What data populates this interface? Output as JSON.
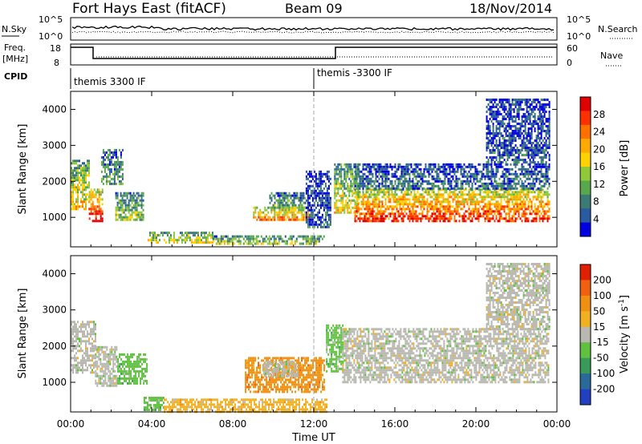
{
  "header": {
    "title": "Fort Hays East (fitACF)",
    "beam": "Beam 09",
    "date": "18/Nov/2014"
  },
  "top_panels": {
    "nsky_label": "N.Sky",
    "nsky_ticks": [
      "10^5",
      "10^0"
    ],
    "nsearch_label": "N.Search",
    "nsearch_ticks": [
      "10^5",
      "10^0"
    ],
    "freq_label": "Freq.",
    "freq_unit": "[MHz]",
    "freq_ticks": [
      "18",
      "8"
    ],
    "nave_label": "Nave",
    "nave_ticks": [
      "60",
      "0"
    ],
    "cpid_label": "CPID",
    "cpid_segments": [
      "themis 3300 IF",
      "themis -3300 IF"
    ]
  },
  "chart_data": [
    {
      "type": "heatmap",
      "name": "power",
      "ylabel": "Slant Range [km]",
      "y_ticks": [
        "1000",
        "2000",
        "3000",
        "4000"
      ],
      "x_ticks": [
        "00:00",
        "04:00",
        "08:00",
        "12:00",
        "16:00",
        "20:00",
        "00:00"
      ],
      "colorbar_label": "Power [dB]",
      "colorbar_ticks": [
        "4",
        "8",
        "12",
        "16",
        "20",
        "24",
        "28"
      ],
      "colors": [
        "#0000e0",
        "#2a5aa0",
        "#3c7a74",
        "#5aa84e",
        "#90c83a",
        "#ffd200",
        "#ffaa00",
        "#ff7000",
        "#ff3000",
        "#e00000"
      ],
      "xlim": [
        0,
        24
      ],
      "ylim": [
        180,
        4500
      ],
      "regions": [
        {
          "t0": 0.0,
          "t1": 0.9,
          "r0": 1200,
          "r1": 2600,
          "level": 0.55
        },
        {
          "t0": 0.9,
          "t1": 1.6,
          "r0": 900,
          "r1": 1800,
          "level": 0.85
        },
        {
          "t0": 1.5,
          "t1": 2.6,
          "r0": 1900,
          "r1": 2900,
          "level": 0.3
        },
        {
          "t0": 2.2,
          "t1": 3.6,
          "r0": 900,
          "r1": 1700,
          "level": 0.4
        },
        {
          "t0": 3.8,
          "t1": 7.0,
          "r0": 300,
          "r1": 600,
          "level": 0.5
        },
        {
          "t0": 7.0,
          "t1": 12.5,
          "r0": 250,
          "r1": 500,
          "level": 0.45
        },
        {
          "t0": 9.0,
          "t1": 11.8,
          "r0": 900,
          "r1": 1300,
          "level": 0.7
        },
        {
          "t0": 9.8,
          "t1": 11.6,
          "r0": 1250,
          "r1": 1700,
          "level": 0.35
        },
        {
          "t0": 11.6,
          "t1": 12.8,
          "r0": 700,
          "r1": 2300,
          "level": 0.15
        },
        {
          "t0": 13.0,
          "t1": 14.2,
          "r0": 1100,
          "r1": 2500,
          "level": 0.5
        },
        {
          "t0": 14.0,
          "t1": 23.6,
          "r0": 900,
          "r1": 1800,
          "level": 0.8
        },
        {
          "t0": 14.0,
          "t1": 23.6,
          "r0": 1800,
          "r1": 2500,
          "level": 0.2
        },
        {
          "t0": 20.5,
          "t1": 23.6,
          "r0": 2500,
          "r1": 4300,
          "level": 0.15
        }
      ]
    },
    {
      "type": "heatmap",
      "name": "velocity",
      "ylabel": "Slant Range [km]",
      "y_ticks": [
        "1000",
        "2000",
        "3000",
        "4000"
      ],
      "x_ticks": [
        "00:00",
        "04:00",
        "08:00",
        "12:00",
        "16:00",
        "20:00",
        "00:00"
      ],
      "xlabel": "Time UT",
      "colorbar_label": "Velocity [m s",
      "colorbar_label_sup": "-1",
      "colorbar_label_end": "]",
      "colorbar_ticks": [
        "200",
        "100",
        "50",
        "15",
        "-15",
        "-50",
        "-100",
        "-200"
      ],
      "colors": [
        "#2040c0",
        "#2a6a9a",
        "#3a9a5a",
        "#60c040",
        "#b8b8b0",
        "#f0b020",
        "#f09010",
        "#f06010",
        "#e02000"
      ],
      "xlim": [
        0,
        24
      ],
      "ylim": [
        180,
        4500
      ],
      "regions": [
        {
          "t0": 0.0,
          "t1": 1.2,
          "r0": 1300,
          "r1": 2700,
          "color_index": 4
        },
        {
          "t0": 1.2,
          "t1": 2.3,
          "r0": 900,
          "r1": 2000,
          "color_index": 4
        },
        {
          "t0": 2.3,
          "t1": 3.8,
          "r0": 1000,
          "r1": 1800,
          "color_index": 3
        },
        {
          "t0": 3.6,
          "t1": 4.6,
          "r0": 250,
          "r1": 600,
          "color_index": 3
        },
        {
          "t0": 4.6,
          "t1": 12.6,
          "r0": 200,
          "r1": 550,
          "color_index": 5
        },
        {
          "t0": 8.6,
          "t1": 12.5,
          "r0": 750,
          "r1": 1700,
          "color_index": 6
        },
        {
          "t0": 9.5,
          "t1": 11.2,
          "r0": 1200,
          "r1": 1600,
          "color_index": 4
        },
        {
          "t0": 12.6,
          "t1": 13.4,
          "r0": 1300,
          "r1": 2600,
          "color_index": 3
        },
        {
          "t0": 13.4,
          "t1": 23.6,
          "r0": 1000,
          "r1": 2500,
          "color_index": 4
        },
        {
          "t0": 20.5,
          "t1": 23.6,
          "r0": 2500,
          "r1": 4300,
          "color_index": 4
        }
      ]
    }
  ]
}
